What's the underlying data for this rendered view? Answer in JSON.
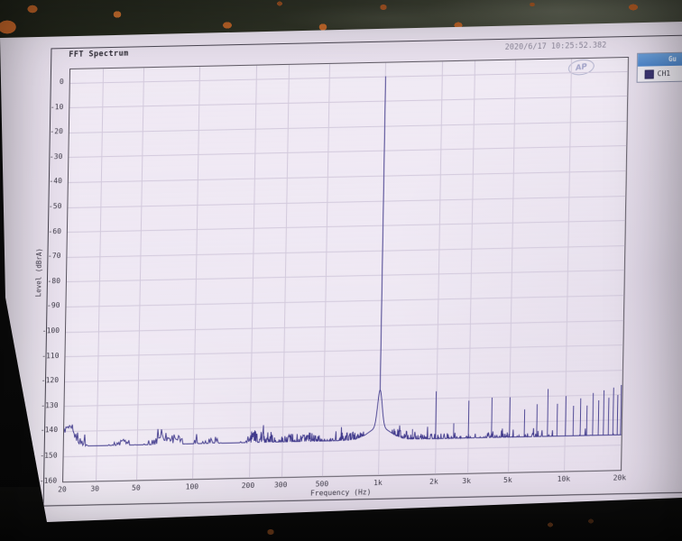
{
  "header": {
    "title": "FFT Spectrum",
    "timestamp": "2020/6/17 10:25:52.382",
    "logo_text": "AP"
  },
  "legend": {
    "header_label": "Gu",
    "entries": [
      {
        "label": "CH1",
        "color": "#3c3574"
      }
    ]
  },
  "colors": {
    "paper": "#e9e1ee",
    "grid": "#d2c9dc",
    "trace": "#413a8c",
    "legend_header_bg": "#5b90d8",
    "rust_speckle": "#c06023"
  },
  "chart_data": {
    "type": "line",
    "title": "FFT Spectrum",
    "xlabel": "Frequency (Hz)",
    "ylabel": "Level (dBrA)",
    "x_scale": "log",
    "grid": true,
    "legend_position": "top-right",
    "xlim": [
      20,
      20000
    ],
    "ylim_db": [
      -160,
      5
    ],
    "x_ticks": [
      {
        "f": 20,
        "label": "20"
      },
      {
        "f": 30,
        "label": "30"
      },
      {
        "f": 50,
        "label": "50"
      },
      {
        "f": 100,
        "label": "100"
      },
      {
        "f": 200,
        "label": "200"
      },
      {
        "f": 300,
        "label": "300"
      },
      {
        "f": 500,
        "label": "500"
      },
      {
        "f": 1000,
        "label": "1k"
      },
      {
        "f": 2000,
        "label": "2k"
      },
      {
        "f": 3000,
        "label": "3k"
      },
      {
        "f": 5000,
        "label": "5k"
      },
      {
        "f": 10000,
        "label": "10k"
      },
      {
        "f": 20000,
        "label": "20k"
      }
    ],
    "y_ticks": [
      0,
      -10,
      -20,
      -30,
      -40,
      -50,
      -60,
      -70,
      -80,
      -90,
      -100,
      -110,
      -120,
      -130,
      -140,
      -150,
      -160
    ],
    "series": [
      {
        "name": "CH1",
        "color": "#413a8c",
        "peak": {
          "freq_hz": 997,
          "level_db": 0
        },
        "noise_floor_db": [
          [
            20,
            -142.5
          ],
          [
            28,
            -145.5
          ],
          [
            35,
            -147
          ],
          [
            45,
            -145.5
          ],
          [
            60,
            -147
          ],
          [
            80,
            -145.5
          ],
          [
            120,
            -146
          ],
          [
            200,
            -145.5
          ],
          [
            300,
            -146
          ],
          [
            500,
            -146
          ],
          [
            800,
            -145.5
          ],
          [
            1000,
            -145.5
          ],
          [
            1400,
            -146.5
          ],
          [
            2000,
            -147
          ],
          [
            3000,
            -147.5
          ],
          [
            5000,
            -148
          ],
          [
            8000,
            -148.5
          ],
          [
            12000,
            -149
          ],
          [
            16000,
            -150
          ],
          [
            20000,
            -150
          ]
        ],
        "harmonic_spurs": [
          [
            1500,
            -142
          ],
          [
            2000,
            -127
          ],
          [
            2500,
            -140
          ],
          [
            3000,
            -131
          ],
          [
            4000,
            -130
          ],
          [
            5000,
            -130
          ],
          [
            6000,
            -135
          ],
          [
            7000,
            -133
          ],
          [
            8000,
            -127
          ],
          [
            9000,
            -133
          ],
          [
            10000,
            -130
          ],
          [
            11000,
            -134
          ],
          [
            12000,
            -131
          ],
          [
            13000,
            -134
          ],
          [
            14000,
            -129
          ],
          [
            15000,
            -132
          ],
          [
            16000,
            -128
          ],
          [
            17000,
            -131
          ],
          [
            18000,
            -127
          ],
          [
            19000,
            -130
          ],
          [
            19800,
            -126
          ]
        ]
      }
    ]
  }
}
